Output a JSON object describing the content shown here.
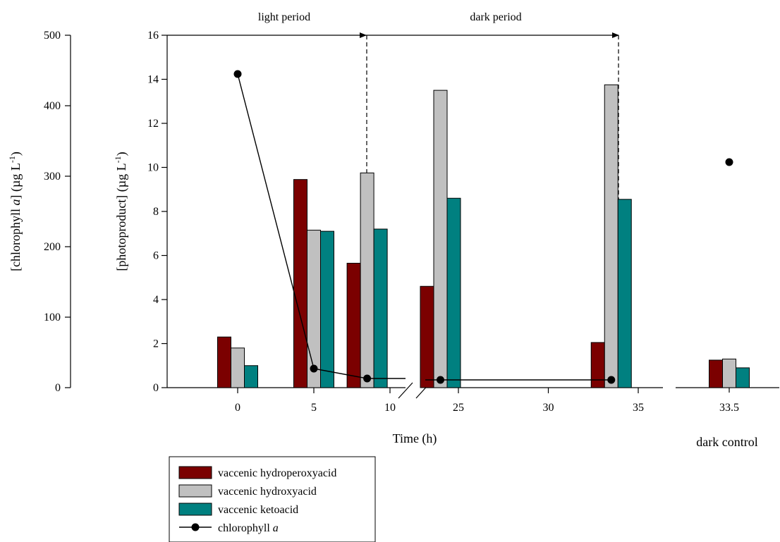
{
  "chart_data": {
    "type": "bar",
    "annotations": {
      "light": "light period",
      "dark": "dark period"
    },
    "xlabel": "Time (h)",
    "ylabel_left": {
      "pre": "[chlorophyll ",
      "var": "a",
      "post": "] (µg L",
      "sup": "-1",
      "close": ")"
    },
    "ylabel_right": {
      "pre": "[photoproduct] (µg L",
      "sup": "-1",
      "close": ")"
    },
    "chl_axis": {
      "ylim": [
        0,
        500
      ],
      "ticks": [
        "0",
        "100",
        "200",
        "300",
        "400",
        "500"
      ]
    },
    "photo_axis": {
      "ylim": [
        0,
        16
      ],
      "ticks": [
        "0",
        "2",
        "4",
        "6",
        "8",
        "10",
        "12",
        "14",
        "16"
      ]
    },
    "x_ticks_segment1": [
      "0",
      "5",
      "10"
    ],
    "x_ticks_segment2": [
      "25",
      "30",
      "35"
    ],
    "control": {
      "tick": "33.5",
      "label": "dark control"
    },
    "light_period_end_h": 8.5,
    "dark_period_end_h": 33.5,
    "series": [
      {
        "name": "vaccenic hydroperoxyacid",
        "color": "#7b0000",
        "points": [
          {
            "x": 0,
            "y": 2.3
          },
          {
            "x": 5,
            "y": 9.45
          },
          {
            "x": 8.5,
            "y": 5.65
          },
          {
            "x": 24,
            "y": 4.6
          },
          {
            "x": 33.5,
            "y": 2.05
          }
        ],
        "control": 1.25
      },
      {
        "name": "vaccenic hydroxyacid",
        "color": "#c0c0c0",
        "points": [
          {
            "x": 0,
            "y": 1.8
          },
          {
            "x": 5,
            "y": 7.15
          },
          {
            "x": 8.5,
            "y": 9.75
          },
          {
            "x": 24,
            "y": 13.5
          },
          {
            "x": 33.5,
            "y": 13.75
          }
        ],
        "control": 1.3
      },
      {
        "name": "vaccenic ketoacid",
        "color": "#008080",
        "points": [
          {
            "x": 0,
            "y": 1.0
          },
          {
            "x": 5,
            "y": 7.1
          },
          {
            "x": 8.5,
            "y": 7.2
          },
          {
            "x": 24,
            "y": 8.6
          },
          {
            "x": 33.5,
            "y": 8.55
          }
        ],
        "control": 0.9
      }
    ],
    "chlorophyll": {
      "name": "chlorophyll a",
      "name_pre": "chlorophyll ",
      "name_var": "a",
      "points": [
        {
          "x": 0,
          "y": 445
        },
        {
          "x": 5,
          "y": 27
        },
        {
          "x": 8.5,
          "y": 13
        },
        {
          "x": 24,
          "y": 11
        },
        {
          "x": 33.5,
          "y": 11
        }
      ],
      "control": 320
    }
  }
}
